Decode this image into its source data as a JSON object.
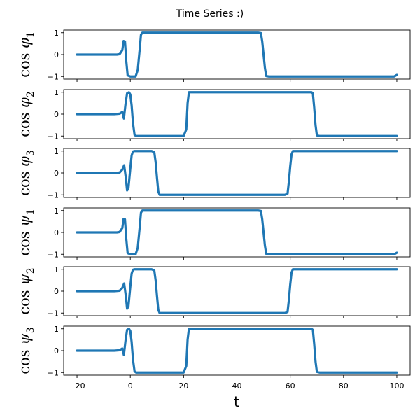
{
  "chart_data": {
    "type": "line",
    "title": "Time Series :)",
    "xlabel": "t",
    "xlim": [
      -25,
      105
    ],
    "xticks": [
      -20,
      0,
      20,
      40,
      60,
      80,
      100
    ],
    "yticks": [
      -1,
      0,
      1
    ],
    "ylim": [
      -1.12,
      1.12
    ],
    "colors": {
      "line": "#1f77b4"
    },
    "panels": [
      {
        "ylabel": {
          "func": "cos",
          "symbol": "φ",
          "sub": "1"
        },
        "x": [
          -20,
          -5,
          -4,
          -3,
          -2.5,
          -2,
          -1.5,
          -1,
          0,
          1,
          2,
          2.8,
          3.5,
          4,
          4.5,
          6,
          20,
          40,
          48,
          49,
          49.5,
          50,
          50.5,
          51,
          52,
          60,
          80,
          99,
          100
        ],
        "y": [
          0,
          0,
          0.02,
          0.2,
          0.62,
          0.6,
          -0.3,
          -0.95,
          -1,
          -1,
          -1,
          -0.7,
          0.2,
          0.9,
          1,
          1,
          1,
          1,
          1,
          0.98,
          0.6,
          0,
          -0.6,
          -0.98,
          -1,
          -1,
          -1,
          -1,
          -0.93
        ]
      },
      {
        "ylabel": {
          "func": "cos",
          "symbol": "φ",
          "sub": "2"
        },
        "x": [
          -20,
          -6,
          -4,
          -3,
          -2.4,
          -1.8,
          -1.2,
          -0.5,
          0,
          0.5,
          1,
          1.6,
          2.2,
          3,
          20,
          21,
          21.5,
          22,
          40,
          68,
          68.5,
          69,
          69.5,
          70,
          71,
          80,
          100
        ],
        "y": [
          0,
          0,
          0.02,
          0.1,
          -0.2,
          0.45,
          0.95,
          1,
          0.9,
          0.4,
          -0.4,
          -0.95,
          -1,
          -1,
          -1,
          -0.7,
          0.5,
          1,
          1,
          1,
          0.95,
          0.3,
          -0.5,
          -0.97,
          -1,
          -1,
          -1
        ]
      },
      {
        "ylabel": {
          "func": "cos",
          "symbol": "φ",
          "sub": "3"
        },
        "x": [
          -20,
          -6,
          -4,
          -3,
          -2.3,
          -1.7,
          -1.2,
          -0.7,
          0,
          0.5,
          1,
          1.5,
          2,
          8,
          9,
          9.5,
          10,
          10.5,
          11,
          20,
          58,
          59,
          59.5,
          60,
          60.5,
          61,
          80,
          100
        ],
        "y": [
          0,
          0,
          0.02,
          0.15,
          0.35,
          -0.2,
          -0.8,
          -0.7,
          0.2,
          0.8,
          0.98,
          1,
          1,
          1,
          0.95,
          0.5,
          -0.2,
          -0.85,
          -1,
          -1,
          -1,
          -0.95,
          -0.4,
          0.3,
          0.85,
          1,
          1,
          1
        ]
      },
      {
        "ylabel": {
          "func": "cos",
          "symbol": "ψ",
          "sub": "1"
        },
        "x": [
          -20,
          -5,
          -4,
          -3,
          -2.5,
          -2,
          -1.5,
          -1,
          0,
          1,
          2,
          2.8,
          3.5,
          4,
          4.5,
          6,
          20,
          40,
          48,
          49,
          49.5,
          50,
          50.5,
          51,
          52,
          60,
          80,
          99,
          100
        ],
        "y": [
          0,
          0,
          0.02,
          0.2,
          0.62,
          0.6,
          -0.3,
          -0.95,
          -1,
          -1,
          -1,
          -0.7,
          0.2,
          0.9,
          1,
          1,
          1,
          1,
          1,
          0.98,
          0.6,
          0,
          -0.6,
          -0.98,
          -1,
          -1,
          -1,
          -1,
          -0.93
        ]
      },
      {
        "ylabel": {
          "func": "cos",
          "symbol": "ψ",
          "sub": "2"
        },
        "x": [
          -20,
          -6,
          -4,
          -3,
          -2.3,
          -1.7,
          -1.2,
          -0.7,
          0,
          0.5,
          1,
          1.5,
          2,
          8,
          9,
          9.5,
          10,
          10.5,
          11,
          20,
          58,
          59,
          59.5,
          60,
          60.5,
          61,
          80,
          100
        ],
        "y": [
          0,
          0,
          0.02,
          0.15,
          0.35,
          -0.2,
          -0.8,
          -0.7,
          0.2,
          0.8,
          0.98,
          1,
          1,
          1,
          0.95,
          0.5,
          -0.2,
          -0.85,
          -1,
          -1,
          -1,
          -0.95,
          -0.4,
          0.3,
          0.85,
          1,
          1,
          1
        ]
      },
      {
        "ylabel": {
          "func": "cos",
          "symbol": "ψ",
          "sub": "3"
        },
        "x": [
          -20,
          -6,
          -4,
          -3,
          -2.4,
          -1.8,
          -1.2,
          -0.5,
          0,
          0.5,
          1,
          1.6,
          2.2,
          3,
          20,
          21,
          21.5,
          22,
          40,
          68,
          68.5,
          69,
          69.5,
          70,
          71,
          80,
          100
        ],
        "y": [
          0,
          0,
          0.02,
          0.1,
          -0.2,
          0.45,
          0.95,
          1,
          0.9,
          0.4,
          -0.4,
          -0.95,
          -1,
          -1,
          -1,
          -0.7,
          0.5,
          1,
          1,
          1,
          0.95,
          0.3,
          -0.5,
          -0.97,
          -1,
          -1,
          -1
        ]
      }
    ]
  }
}
